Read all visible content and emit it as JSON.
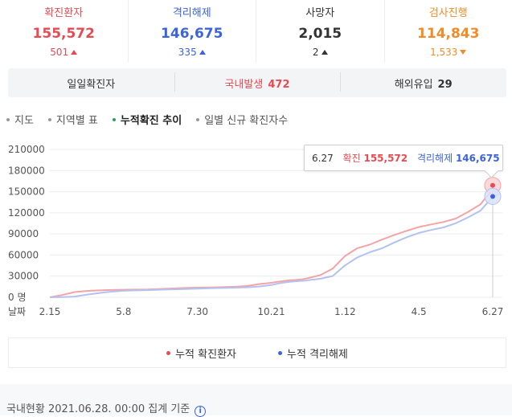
{
  "stats": [
    {
      "label": "확진환자",
      "value": "155,572",
      "delta": "501",
      "dir": "up",
      "color": "#e74a52"
    },
    {
      "label": "격리해제",
      "value": "146,675",
      "delta": "335",
      "dir": "up",
      "color": "#3c63d9"
    },
    {
      "label": "사망자",
      "value": "2,015",
      "delta": "2",
      "dir": "up",
      "color": "#333333"
    },
    {
      "label": "검사진행",
      "value": "114,843",
      "delta": "1,533",
      "dir": "down",
      "color": "#f28c28"
    }
  ],
  "origin": {
    "daily_label": "일일확진자",
    "domestic_label": "국내발생",
    "domestic_value": "472",
    "overseas_label": "해외유입",
    "overseas_value": "29"
  },
  "tabs": [
    "지도",
    "지역별 표",
    "누적확진 추이",
    "일별 신규 확진자수"
  ],
  "tooltip": {
    "date": "6.27",
    "confirmed_label": "확진",
    "confirmed_value": "155,572",
    "released_label": "격리해제",
    "released_value": "146,675"
  },
  "legend": {
    "confirmed": "누적 확진환자",
    "released": "누적 격리해제"
  },
  "footer": {
    "text": "국내현황 2021.06.28. 00:00 집계 기준"
  },
  "colors": {
    "confirmed": "#e74a52",
    "released": "#3c63d9",
    "active_tab": "#2ca05a"
  },
  "chart_data": {
    "type": "line",
    "y_ticks": [
      "210000",
      "180000",
      "150000",
      "120000",
      "90000",
      "60000",
      "30000",
      "0 명"
    ],
    "ylim": [
      0,
      210000
    ],
    "x_axis_label": "날짜",
    "x_ticks": [
      {
        "label": "2.15",
        "index": 0
      },
      {
        "label": "5.8",
        "index": 12
      },
      {
        "label": "7.30",
        "index": 24
      },
      {
        "label": "10.21",
        "index": 36
      },
      {
        "label": "1.12",
        "index": 48
      },
      {
        "label": "4.5",
        "index": 60
      },
      {
        "label": "6.27",
        "index": 72
      }
    ],
    "series": [
      {
        "name": "누적 확진환자",
        "color": "#f4a3a6",
        "values": [
          28,
          3150,
          7400,
          9000,
          9800,
          10350,
          10700,
          11000,
          11200,
          11900,
          12600,
          13200,
          13700,
          14000,
          14400,
          15000,
          16000,
          18700,
          20600,
          22000,
          23200,
          24200,
          24700,
          25500,
          27300,
          31500,
          40900,
          58700,
          69700,
          74800,
          81900,
          88600,
          94400,
          99900,
          103500,
          106900,
          111800,
          121300,
          131900,
          142800,
          152400,
          155572
        ]
      },
      {
        "name": "누적 격리해제",
        "color": "#b3c2f0",
        "values": [
          0,
          300,
          1000,
          3800,
          6000,
          8000,
          9200,
          9800,
          10200,
          10800,
          11300,
          11800,
          12300,
          12800,
          13200,
          13600,
          14200,
          15300,
          17300,
          19400,
          20800,
          22000,
          22800,
          23300,
          24200,
          26400,
          30200,
          45300,
          56600,
          63900,
          69600,
          77800,
          85200,
          91400,
          95600,
          99300,
          105200,
          113600,
          122900,
          132800,
          142400,
          146675
        ]
      }
    ],
    "x_index": [
      0,
      2,
      4,
      6,
      8,
      10,
      12,
      14,
      16,
      18,
      20,
      22,
      24,
      26,
      28,
      30,
      32,
      34,
      36,
      37,
      38,
      39,
      40,
      41,
      42,
      44,
      46,
      48,
      50,
      52,
      54,
      56,
      58,
      60,
      62,
      64,
      66,
      68,
      70,
      71,
      72,
      73
    ]
  }
}
